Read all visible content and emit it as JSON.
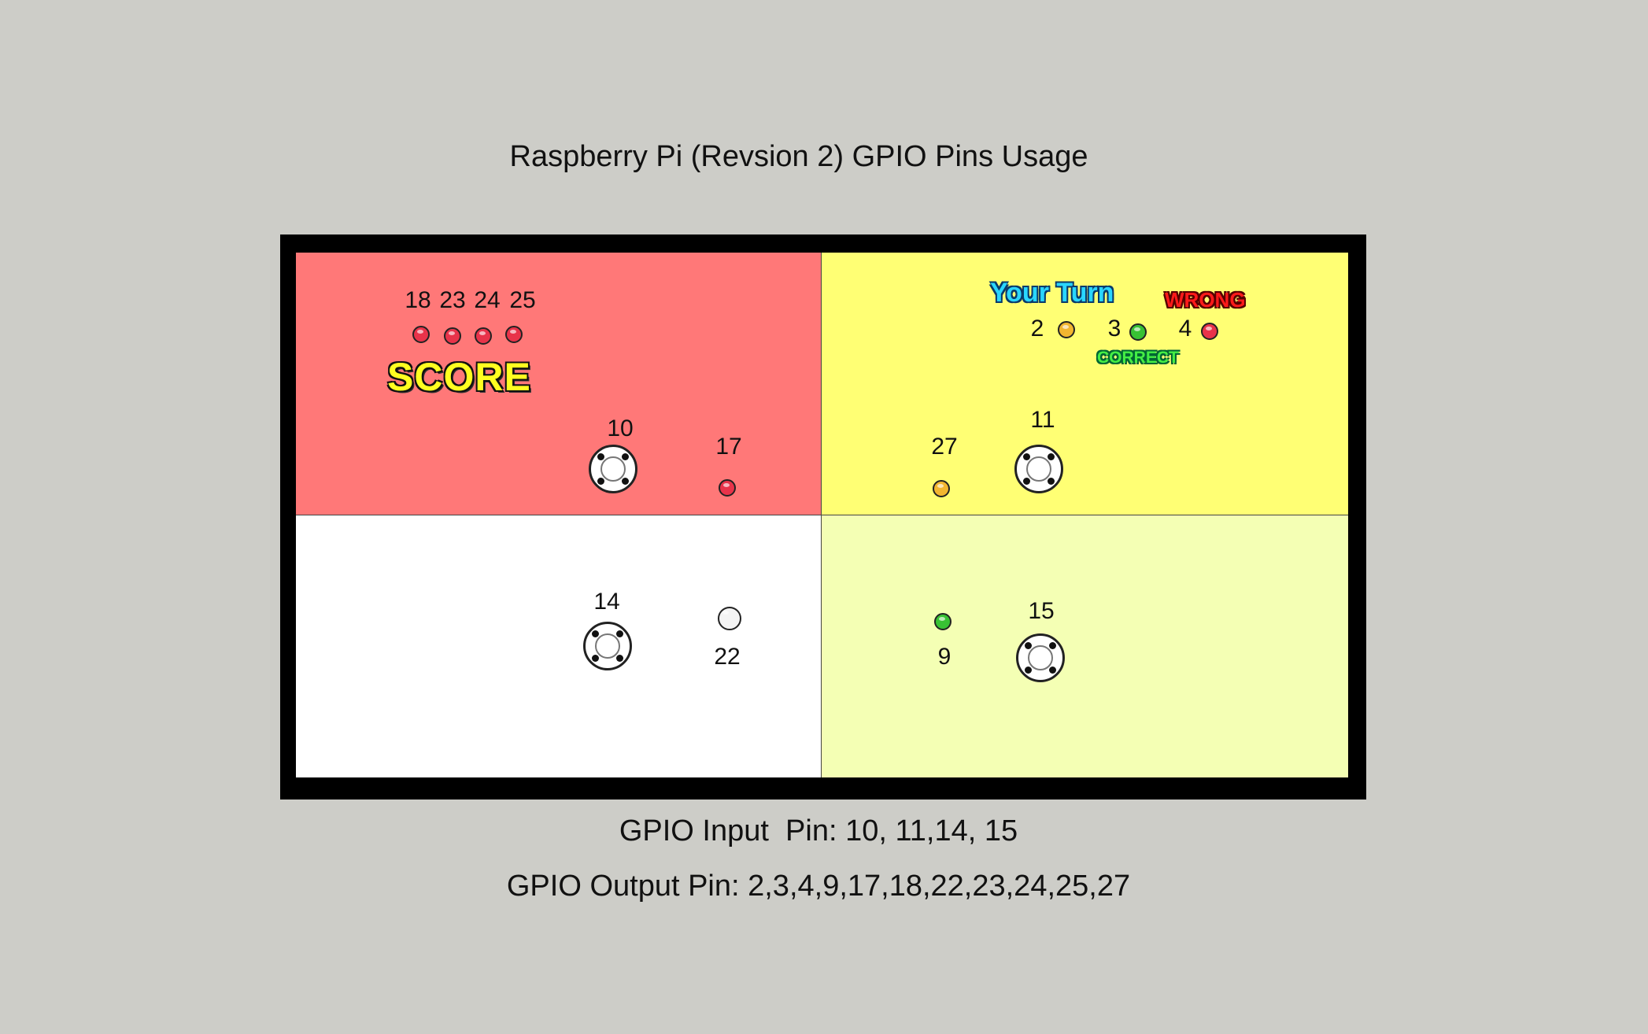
{
  "title": "Raspberry Pi (Revsion 2) GPIO Pins Usage",
  "colors": {
    "background": "#cdcdc8",
    "frame": "#000000",
    "top_left": "#ff7878",
    "top_right": "#ffff74",
    "bottom_left": "#ffffff",
    "bottom_right": "#f4ffb4",
    "led_red": "#e8334a",
    "led_yellow": "#f2b630",
    "led_green": "#38c234",
    "led_white": "#f4f4f4"
  },
  "score_leds": {
    "labels": [
      "18",
      "23",
      "24",
      "25"
    ],
    "word": "SCORE"
  },
  "quadrants": {
    "top_left": {
      "button_label": "10",
      "led_label": "17"
    },
    "top_right": {
      "your_turn": "Your Turn",
      "wrong": "WRONG",
      "correct": "CORRECT",
      "status_leds": [
        "2",
        "3",
        "4"
      ],
      "button_label": "11",
      "led_label": "27"
    },
    "bottom_left": {
      "button_label": "14",
      "led_label": "22"
    },
    "bottom_right": {
      "button_label": "15",
      "led_label": "9"
    }
  },
  "footer": {
    "input_pins": "GPIO Input  Pin: 10, 11,14, 15",
    "output_pins": "GPIO Output Pin: 2,3,4,9,17,18,22,23,24,25,27"
  }
}
